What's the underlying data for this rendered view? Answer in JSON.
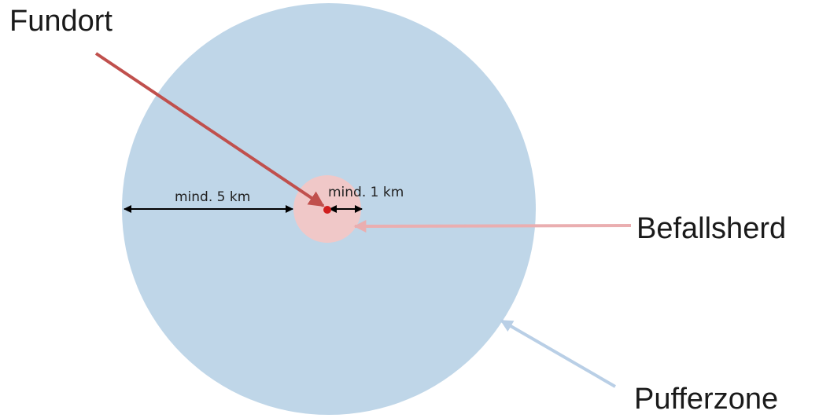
{
  "labels": {
    "find_site": "Fundort",
    "outbreak": "Befallsherd",
    "buffer_zone": "Pufferzone"
  },
  "dimensions": {
    "buffer_radius": "mind. 5 km",
    "outbreak_radius": "mind. 1 km"
  },
  "colors": {
    "buffer_fill": "#bfd6e8",
    "outbreak_fill": "#f0c8c8",
    "find_site_dot": "#d01f1f",
    "find_site_arrow": "#c0504d",
    "outbreak_arrow": "#eaaeb0",
    "buffer_arrow": "#b9cfe6",
    "dimension_arrow": "#000000"
  }
}
